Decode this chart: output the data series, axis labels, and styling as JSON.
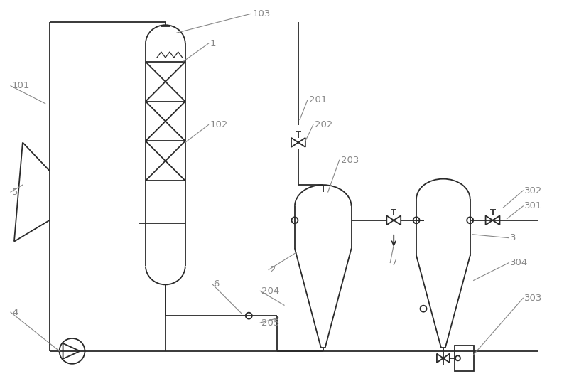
{
  "bg_color": "#ffffff",
  "line_color": "#2a2a2a",
  "label_color": "#888888",
  "lw": 1.3,
  "fs": 9.5
}
